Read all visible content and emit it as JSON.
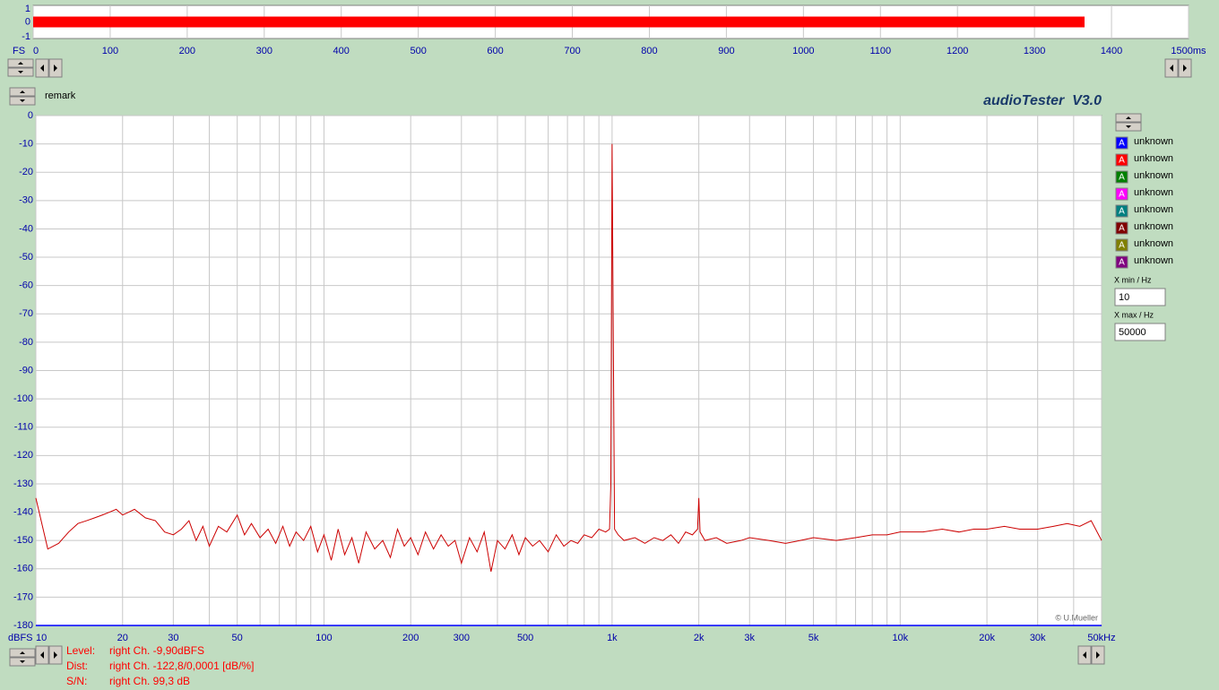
{
  "window": {
    "remark": "remark",
    "app_title": "audioTester  V3.0",
    "copyright": "© U.Mueller",
    "x_min_label": "X min / Hz",
    "x_max_label": "X max / Hz",
    "status": [
      {
        "key": "Level:",
        "text": "right Ch. -9,90dBFS"
      },
      {
        "key": "Dist:",
        "text": "right Ch. -122,8/0,0001 [dB/%]"
      },
      {
        "key": "S/N:",
        "text": "right Ch. 99,3 dB"
      }
    ]
  },
  "legend": [
    {
      "name": "unknown",
      "color": "#0000ff",
      "icon": "A"
    },
    {
      "name": "unknown",
      "color": "#ff0000",
      "icon": "A"
    },
    {
      "name": "unknown",
      "color": "#008000",
      "icon": "A"
    },
    {
      "name": "unknown",
      "color": "#ff00ff",
      "icon": "A"
    },
    {
      "name": "unknown",
      "color": "#008080",
      "icon": "A"
    },
    {
      "name": "unknown",
      "color": "#800000",
      "icon": "A"
    },
    {
      "name": "unknown",
      "color": "#808000",
      "icon": "A"
    },
    {
      "name": "unknown",
      "color": "#800080",
      "icon": "A"
    }
  ],
  "chart_data": [
    {
      "type": "bar",
      "orientation": "horizontal",
      "y_label": "FS",
      "values": [
        1365
      ],
      "color": "#ff0000",
      "xlim": [
        0,
        1500
      ],
      "xticks": [
        0,
        100,
        200,
        300,
        400,
        500,
        600,
        700,
        800,
        900,
        1000,
        1100,
        1200,
        1300,
        1400,
        {
          "value": 1500,
          "label": "1500ms"
        }
      ],
      "ylim": [
        -1,
        1
      ],
      "yticks": [
        -1,
        0,
        1
      ],
      "grid": true
    },
    {
      "type": "line",
      "x_scale": "log",
      "y_label": "dBFS",
      "xlim": [
        10,
        50000
      ],
      "xticks": [
        10,
        20,
        30,
        50,
        100,
        200,
        300,
        500,
        {
          "value": 1000,
          "label": "1k"
        },
        {
          "value": 2000,
          "label": "2k"
        },
        {
          "value": 3000,
          "label": "3k"
        },
        {
          "value": 5000,
          "label": "5k"
        },
        {
          "value": 10000,
          "label": "10k"
        },
        {
          "value": 20000,
          "label": "20k"
        },
        {
          "value": 30000,
          "label": "30k"
        },
        {
          "value": 50000,
          "label": "50kHz"
        }
      ],
      "x_minor_ticks": [
        40,
        60,
        70,
        80,
        90,
        400,
        600,
        700,
        800,
        900,
        4000,
        6000,
        7000,
        8000,
        9000,
        40000
      ],
      "ylim": [
        -180,
        0
      ],
      "yticks": [
        0,
        -10,
        -20,
        -30,
        -40,
        -50,
        -60,
        -70,
        -80,
        -90,
        -100,
        -110,
        -120,
        -130,
        -140,
        -150,
        -160,
        -170,
        -180
      ],
      "grid": true,
      "series": [
        {
          "color": "#cc0000",
          "x": [
            10,
            11,
            12,
            13,
            14,
            15,
            16,
            17,
            18,
            19,
            20,
            21,
            22,
            24,
            26,
            28,
            30,
            32,
            34,
            36,
            38,
            40,
            43,
            46,
            50,
            53,
            56,
            60,
            64,
            68,
            72,
            76,
            80,
            85,
            90,
            95,
            100,
            106,
            112,
            118,
            125,
            132,
            140,
            150,
            160,
            170,
            180,
            190,
            200,
            212,
            225,
            240,
            255,
            270,
            285,
            300,
            320,
            340,
            360,
            380,
            400,
            425,
            450,
            475,
            500,
            530,
            560,
            600,
            640,
            680,
            720,
            760,
            800,
            850,
            900,
            950,
            980,
            990,
            1000,
            1010,
            1020,
            1050,
            1100,
            1200,
            1300,
            1400,
            1500,
            1600,
            1700,
            1800,
            1900,
            1980,
            2000,
            2020,
            2100,
            2300,
            2500,
            2800,
            3000,
            3500,
            4000,
            4500,
            5000,
            6000,
            7000,
            8000,
            9000,
            10000,
            12000,
            14000,
            16000,
            18000,
            20000,
            23000,
            26000,
            30000,
            34000,
            38000,
            42000,
            46000,
            50000
          ],
          "values": [
            -135,
            -153,
            -151,
            -147,
            -144,
            -143,
            -142,
            -141,
            -140,
            -139,
            -141,
            -140,
            -139,
            -142,
            -143,
            -147,
            -148,
            -146,
            -143,
            -150,
            -145,
            -152,
            -145,
            -147,
            -141,
            -148,
            -144,
            -149,
            -146,
            -151,
            -145,
            -152,
            -147,
            -150,
            -145,
            -154,
            -148,
            -157,
            -146,
            -155,
            -149,
            -158,
            -147,
            -153,
            -150,
            -156,
            -146,
            -152,
            -149,
            -155,
            -147,
            -153,
            -148,
            -152,
            -150,
            -158,
            -149,
            -154,
            -147,
            -161,
            -150,
            -153,
            -148,
            -155,
            -149,
            -152,
            -150,
            -154,
            -148,
            -152,
            -150,
            -151,
            -148,
            -149,
            -146,
            -147,
            -146,
            -130,
            -10,
            -80,
            -146,
            -148,
            -150,
            -149,
            -151,
            -149,
            -150,
            -148,
            -151,
            -147,
            -148,
            -146,
            -135,
            -147,
            -150,
            -149,
            -151,
            -150,
            -149,
            -150,
            -151,
            -150,
            -149,
            -150,
            -149,
            -148,
            -148,
            -147,
            -147,
            -146,
            -147,
            -146,
            -146,
            -145,
            -146,
            -146,
            -145,
            -144,
            -145,
            -143,
            -150
          ]
        }
      ]
    }
  ]
}
